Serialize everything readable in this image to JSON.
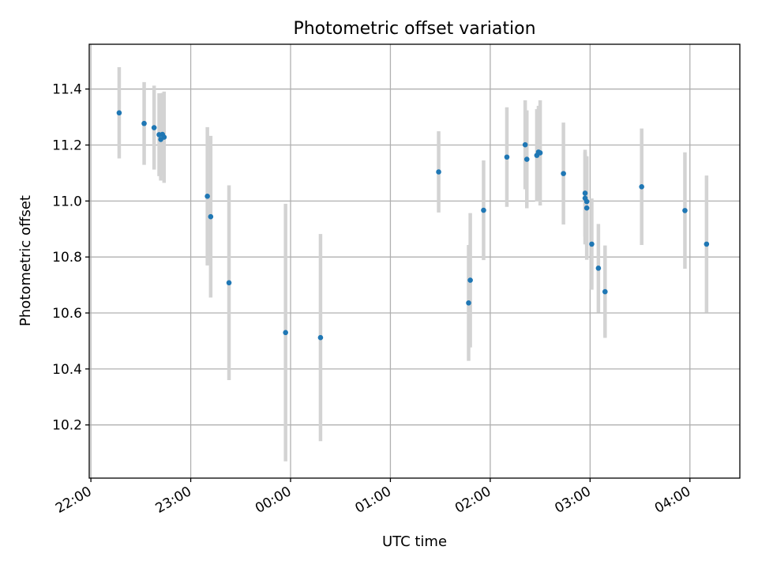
{
  "chart_data": {
    "type": "scatter",
    "title": "Photometric offset variation",
    "xlabel": "UTC time",
    "ylabel": "Photometric offset",
    "xlim": [
      "21:59",
      "04:30"
    ],
    "ylim": [
      10.01,
      11.56
    ],
    "x_ticks": [
      "22:00",
      "23:00",
      "00:00",
      "01:00",
      "02:00",
      "03:00",
      "04:00"
    ],
    "y_ticks": [
      10.2,
      10.4,
      10.6,
      10.8,
      11.0,
      11.2,
      11.4
    ],
    "grid": true,
    "colors": {
      "point": "#1f77b4",
      "errorbar": "#d3d3d3",
      "grid": "#b0b0b0"
    },
    "points": [
      {
        "x": "22:17",
        "y": 11.315,
        "err": 0.163
      },
      {
        "x": "22:32",
        "y": 11.277,
        "err": 0.148
      },
      {
        "x": "22:38",
        "y": 11.262,
        "err": 0.15
      },
      {
        "x": "22:41",
        "y": 11.237,
        "err": 0.148
      },
      {
        "x": "22:42",
        "y": 11.22,
        "err": 0.147
      },
      {
        "x": "22:43",
        "y": 11.238,
        "err": 0.148
      },
      {
        "x": "22:44",
        "y": 11.228,
        "err": 0.163
      },
      {
        "x": "23:10",
        "y": 11.017,
        "err": 0.247
      },
      {
        "x": "23:12",
        "y": 10.944,
        "err": 0.289
      },
      {
        "x": "23:23",
        "y": 10.708,
        "err": 0.348
      },
      {
        "x": "23:57",
        "y": 10.53,
        "err": 0.46
      },
      {
        "x": "00:18",
        "y": 10.512,
        "err": 0.37
      },
      {
        "x": "01:29",
        "y": 11.104,
        "err": 0.145
      },
      {
        "x": "01:47",
        "y": 10.636,
        "err": 0.207
      },
      {
        "x": "01:48",
        "y": 10.717,
        "err": 0.24
      },
      {
        "x": "01:56",
        "y": 10.967,
        "err": 0.178
      },
      {
        "x": "02:10",
        "y": 11.157,
        "err": 0.178
      },
      {
        "x": "02:21",
        "y": 11.201,
        "err": 0.159
      },
      {
        "x": "02:22",
        "y": 11.149,
        "err": 0.175
      },
      {
        "x": "02:28",
        "y": 11.163,
        "err": 0.165
      },
      {
        "x": "02:29",
        "y": 11.175,
        "err": 0.165
      },
      {
        "x": "02:30",
        "y": 11.172,
        "err": 0.188
      },
      {
        "x": "02:44",
        "y": 11.098,
        "err": 0.182
      },
      {
        "x": "02:57",
        "y": 11.028,
        "err": 0.155
      },
      {
        "x": "02:57",
        "y": 11.01,
        "err": 0.165
      },
      {
        "x": "02:58",
        "y": 10.998,
        "err": 0.158
      },
      {
        "x": "02:58",
        "y": 10.975,
        "err": 0.185
      },
      {
        "x": "03:01",
        "y": 10.846,
        "err": 0.163
      },
      {
        "x": "03:05",
        "y": 10.76,
        "err": 0.158
      },
      {
        "x": "03:09",
        "y": 10.676,
        "err": 0.165
      },
      {
        "x": "03:31",
        "y": 11.051,
        "err": 0.208
      },
      {
        "x": "03:57",
        "y": 10.966,
        "err": 0.208
      },
      {
        "x": "04:10",
        "y": 10.846,
        "err": 0.245
      }
    ]
  }
}
